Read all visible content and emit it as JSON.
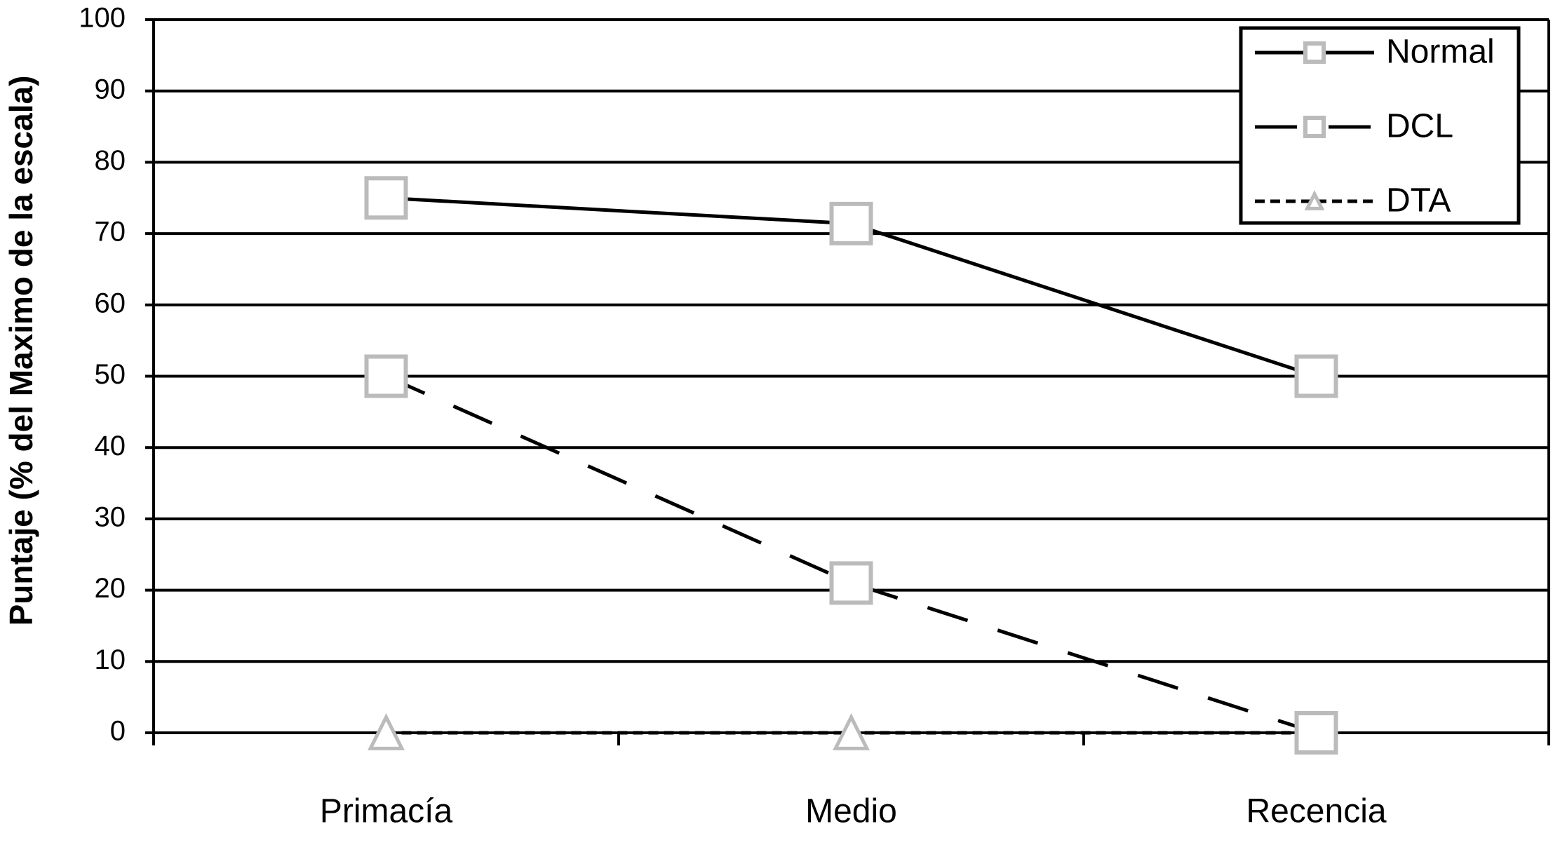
{
  "chart_data": {
    "type": "line",
    "y_label": "Puntaje (% del Maximo de la escala)",
    "categories": [
      "Primacía",
      "Medio",
      "Recencia"
    ],
    "series": [
      {
        "name": "Normal",
        "color": "#000000",
        "marker_color": "#bbbbbb",
        "marker": "square",
        "linestyle": "solid",
        "values": [
          75,
          71.4,
          50
        ]
      },
      {
        "name": "DCL",
        "color": "#000000",
        "marker_color": "#bbbbbb",
        "marker": "square",
        "linestyle": "dashed",
        "values": [
          50,
          21,
          0
        ]
      },
      {
        "name": "DTA",
        "color": "#000000",
        "marker_color": "#bbbbbb",
        "marker": "triangle",
        "linestyle": "dotted",
        "values": [
          0,
          0,
          0
        ]
      }
    ],
    "ylim": [
      0,
      100
    ],
    "yticks": [
      0,
      10,
      20,
      30,
      40,
      50,
      60,
      70,
      80,
      90,
      100
    ],
    "grid": true,
    "legend": "upper right"
  }
}
